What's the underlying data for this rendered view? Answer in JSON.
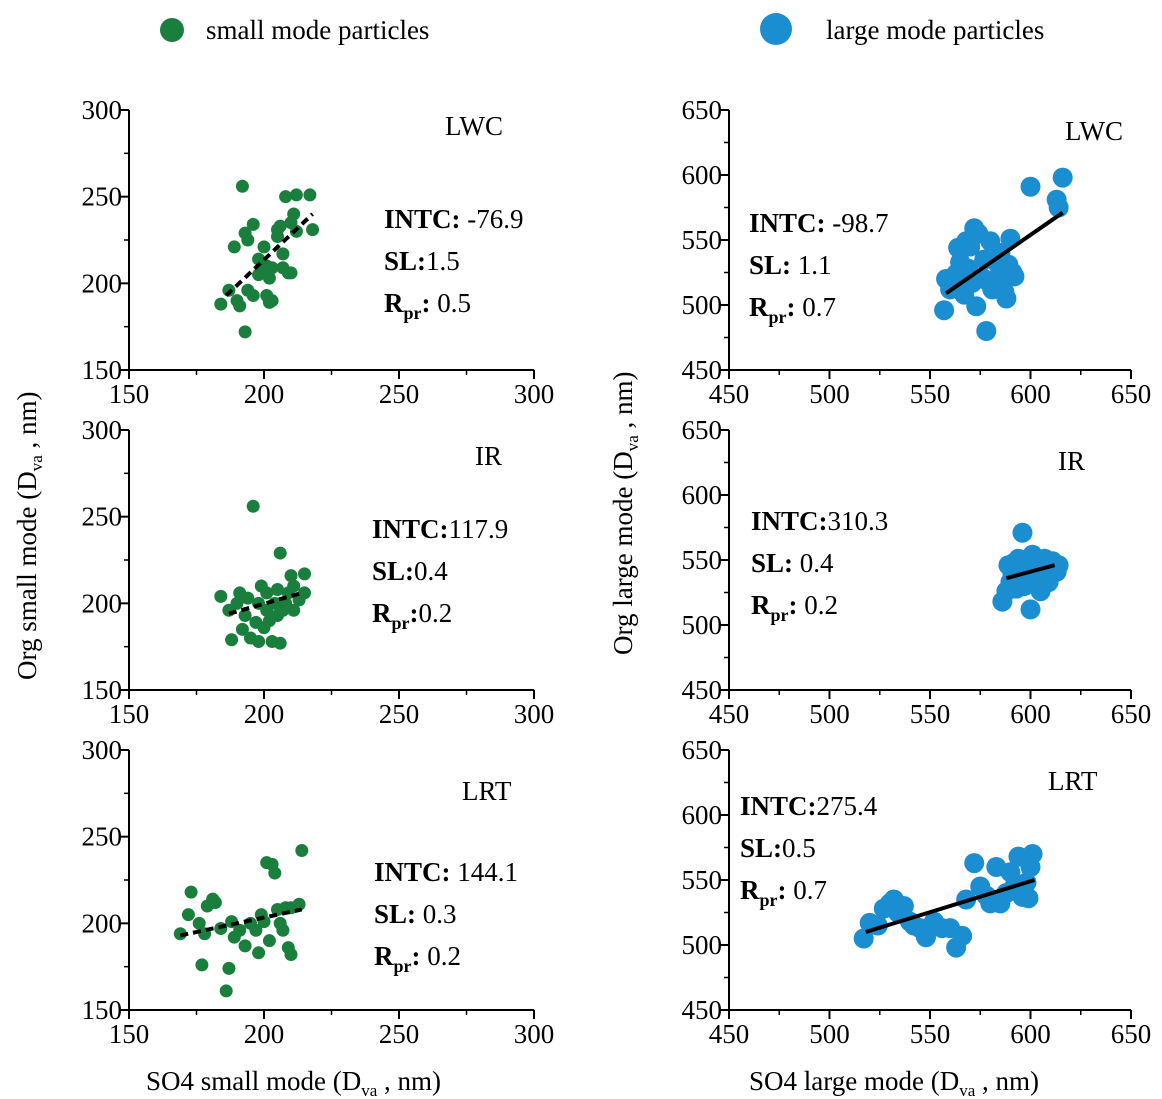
{
  "legend": {
    "small_label": "small mode particles",
    "small_color": "#1a7f3c",
    "large_label": "large mode particles",
    "large_color": "#1b8ed1"
  },
  "axes_labels": {
    "small_x": "SO4 small mode (D",
    "small_y": "Org small mode (D",
    "large_x": "SO4 large mode (D",
    "large_y": "Org large mode (D",
    "sub": "va",
    "unit": " , nm)"
  },
  "stat_keys": {
    "intc": "INTC:",
    "sl": "SL:",
    "r": "R",
    "r_sub": "pr",
    "colon": ":"
  },
  "chart_data": [
    {
      "type": "scatter",
      "group": "small",
      "title": "LWC",
      "xlim": [
        150,
        300
      ],
      "ylim": [
        150,
        300
      ],
      "xticks": [
        150,
        200,
        250,
        300
      ],
      "yticks": [
        150,
        200,
        250,
        300
      ],
      "intc": " -76.9",
      "sl": "1.5",
      "rpr": " 0.5",
      "fit": {
        "x": [
          186,
          218
        ],
        "y": [
          193,
          240
        ],
        "style": "dashed"
      },
      "points": [
        [
          184,
          188
        ],
        [
          187,
          196
        ],
        [
          189,
          221
        ],
        [
          190,
          190
        ],
        [
          191,
          187
        ],
        [
          192,
          256
        ],
        [
          193,
          172
        ],
        [
          193,
          229
        ],
        [
          194,
          225
        ],
        [
          194,
          196
        ],
        [
          196,
          234
        ],
        [
          196,
          193
        ],
        [
          198,
          205
        ],
        [
          198,
          214
        ],
        [
          199,
          207
        ],
        [
          200,
          221
        ],
        [
          201,
          193
        ],
        [
          201,
          210
        ],
        [
          202,
          189
        ],
        [
          202,
          203
        ],
        [
          203,
          209
        ],
        [
          203,
          190
        ],
        [
          205,
          227
        ],
        [
          205,
          231
        ],
        [
          206,
          233
        ],
        [
          207,
          209
        ],
        [
          207,
          217
        ],
        [
          208,
          250
        ],
        [
          209,
          206
        ],
        [
          210,
          235
        ],
        [
          210,
          206
        ],
        [
          211,
          240
        ],
        [
          212,
          251
        ],
        [
          212,
          230
        ],
        [
          217,
          251
        ],
        [
          218,
          231
        ]
      ]
    },
    {
      "type": "scatter",
      "group": "large",
      "title": "LWC",
      "xlim": [
        450,
        650
      ],
      "ylim": [
        450,
        650
      ],
      "xticks": [
        450,
        500,
        550,
        600,
        650
      ],
      "yticks": [
        450,
        500,
        550,
        600,
        650
      ],
      "intc": " -98.7",
      "sl": " 1.1",
      "rpr": " 0.7",
      "fit": {
        "x": [
          558,
          616
        ],
        "y": [
          509,
          571
        ],
        "style": "solid"
      },
      "points": [
        [
          557,
          496
        ],
        [
          558,
          520
        ],
        [
          560,
          512
        ],
        [
          562,
          519
        ],
        [
          563,
          524
        ],
        [
          564,
          544
        ],
        [
          565,
          533
        ],
        [
          566,
          530
        ],
        [
          567,
          508
        ],
        [
          568,
          549
        ],
        [
          569,
          528
        ],
        [
          570,
          545
        ],
        [
          571,
          517
        ],
        [
          572,
          559
        ],
        [
          573,
          499
        ],
        [
          574,
          555
        ],
        [
          576,
          521
        ],
        [
          577,
          535
        ],
        [
          578,
          480
        ],
        [
          579,
          518
        ],
        [
          580,
          549
        ],
        [
          581,
          512
        ],
        [
          583,
          533
        ],
        [
          584,
          522
        ],
        [
          585,
          540
        ],
        [
          586,
          530
        ],
        [
          587,
          510
        ],
        [
          588,
          505
        ],
        [
          589,
          531
        ],
        [
          590,
          551
        ],
        [
          591,
          525
        ],
        [
          592,
          522
        ],
        [
          600,
          591
        ],
        [
          613,
          581
        ],
        [
          614,
          575
        ],
        [
          616,
          598
        ]
      ]
    },
    {
      "type": "scatter",
      "group": "small",
      "title": "IR",
      "xlim": [
        150,
        300
      ],
      "ylim": [
        150,
        300
      ],
      "xticks": [
        150,
        200,
        250,
        300
      ],
      "yticks": [
        150,
        200,
        250,
        300
      ],
      "intc": "117.9",
      "sl": "0.4",
      "rpr": "0.2",
      "fit": {
        "x": [
          187,
          214
        ],
        "y": [
          194,
          206
        ],
        "style": "dashed"
      },
      "points": [
        [
          184,
          204
        ],
        [
          187,
          196
        ],
        [
          188,
          179
        ],
        [
          190,
          200
        ],
        [
          191,
          206
        ],
        [
          192,
          185
        ],
        [
          193,
          193
        ],
        [
          194,
          203
        ],
        [
          195,
          180
        ],
        [
          196,
          256
        ],
        [
          197,
          189
        ],
        [
          198,
          178
        ],
        [
          198,
          200
        ],
        [
          199,
          210
        ],
        [
          200,
          186
        ],
        [
          201,
          196
        ],
        [
          201,
          206
        ],
        [
          202,
          190
        ],
        [
          203,
          178
        ],
        [
          204,
          200
        ],
        [
          205,
          193
        ],
        [
          205,
          208
        ],
        [
          206,
          229
        ],
        [
          206,
          177
        ],
        [
          207,
          196
        ],
        [
          208,
          200
        ],
        [
          209,
          206
        ],
        [
          210,
          216
        ],
        [
          211,
          196
        ],
        [
          211,
          210
        ],
        [
          213,
          202
        ],
        [
          215,
          217
        ],
        [
          215,
          206
        ]
      ]
    },
    {
      "type": "scatter",
      "group": "large",
      "title": "IR",
      "xlim": [
        450,
        650
      ],
      "ylim": [
        450,
        650
      ],
      "xticks": [
        450,
        500,
        550,
        600,
        650
      ],
      "yticks": [
        450,
        500,
        550,
        600,
        650
      ],
      "intc": "310.3",
      "sl": " 0.4",
      "rpr": " 0.2",
      "fit": {
        "x": [
          588,
          612
        ],
        "y": [
          536,
          546
        ],
        "style": "solid"
      },
      "points": [
        [
          586,
          518
        ],
        [
          588,
          526
        ],
        [
          589,
          546
        ],
        [
          590,
          533
        ],
        [
          591,
          540
        ],
        [
          592,
          548
        ],
        [
          593,
          528
        ],
        [
          594,
          551
        ],
        [
          595,
          536
        ],
        [
          596,
          544
        ],
        [
          596,
          571
        ],
        [
          597,
          530
        ],
        [
          598,
          550
        ],
        [
          599,
          538
        ],
        [
          600,
          512
        ],
        [
          600,
          546
        ],
        [
          601,
          554
        ],
        [
          602,
          532
        ],
        [
          603,
          542
        ],
        [
          604,
          549
        ],
        [
          605,
          526
        ],
        [
          606,
          536
        ],
        [
          607,
          551
        ],
        [
          608,
          540
        ],
        [
          609,
          533
        ],
        [
          610,
          546
        ],
        [
          611,
          549
        ],
        [
          613,
          541
        ],
        [
          614,
          546
        ]
      ]
    },
    {
      "type": "scatter",
      "group": "small",
      "title": "LRT",
      "xlim": [
        150,
        300
      ],
      "ylim": [
        150,
        300
      ],
      "xticks": [
        150,
        200,
        250,
        300
      ],
      "yticks": [
        150,
        200,
        250,
        300
      ],
      "intc": " 144.1",
      "sl": " 0.3",
      "rpr": " 0.2",
      "fit": {
        "x": [
          169,
          214
        ],
        "y": [
          193,
          208
        ],
        "style": "dashed"
      },
      "points": [
        [
          169,
          194
        ],
        [
          172,
          205
        ],
        [
          173,
          218
        ],
        [
          176,
          200
        ],
        [
          177,
          176
        ],
        [
          178,
          194
        ],
        [
          179,
          210
        ],
        [
          181,
          214
        ],
        [
          182,
          212
        ],
        [
          184,
          197
        ],
        [
          186,
          161
        ],
        [
          187,
          174
        ],
        [
          188,
          201
        ],
        [
          189,
          192
        ],
        [
          191,
          196
        ],
        [
          193,
          187
        ],
        [
          195,
          200
        ],
        [
          197,
          196
        ],
        [
          198,
          183
        ],
        [
          199,
          205
        ],
        [
          200,
          201
        ],
        [
          201,
          235
        ],
        [
          202,
          190
        ],
        [
          203,
          234
        ],
        [
          204,
          229
        ],
        [
          205,
          208
        ],
        [
          206,
          200
        ],
        [
          207,
          196
        ],
        [
          208,
          209
        ],
        [
          209,
          186
        ],
        [
          210,
          182
        ],
        [
          210,
          209
        ],
        [
          213,
          211
        ],
        [
          214,
          242
        ]
      ]
    },
    {
      "type": "scatter",
      "group": "large",
      "title": "LRT",
      "xlim": [
        450,
        650
      ],
      "ylim": [
        450,
        650
      ],
      "xticks": [
        450,
        500,
        550,
        600,
        650
      ],
      "yticks": [
        450,
        500,
        550,
        600,
        650
      ],
      "intc": "275.4",
      "sl": "0.5",
      "rpr": " 0.7",
      "fit": {
        "x": [
          518,
          602
        ],
        "y": [
          510,
          550
        ],
        "style": "solid"
      },
      "points": [
        [
          517,
          505
        ],
        [
          520,
          517
        ],
        [
          524,
          515
        ],
        [
          527,
          528
        ],
        [
          530,
          532
        ],
        [
          532,
          535
        ],
        [
          534,
          525
        ],
        [
          537,
          530
        ],
        [
          540,
          518
        ],
        [
          542,
          515
        ],
        [
          545,
          513
        ],
        [
          548,
          506
        ],
        [
          552,
          518
        ],
        [
          556,
          513
        ],
        [
          560,
          513
        ],
        [
          563,
          498
        ],
        [
          566,
          507
        ],
        [
          568,
          535
        ],
        [
          572,
          563
        ],
        [
          575,
          545
        ],
        [
          578,
          538
        ],
        [
          580,
          532
        ],
        [
          583,
          560
        ],
        [
          585,
          532
        ],
        [
          588,
          540
        ],
        [
          590,
          556
        ],
        [
          592,
          545
        ],
        [
          594,
          568
        ],
        [
          596,
          537
        ],
        [
          598,
          548
        ],
        [
          599,
          536
        ],
        [
          600,
          560
        ],
        [
          601,
          570
        ]
      ]
    }
  ]
}
